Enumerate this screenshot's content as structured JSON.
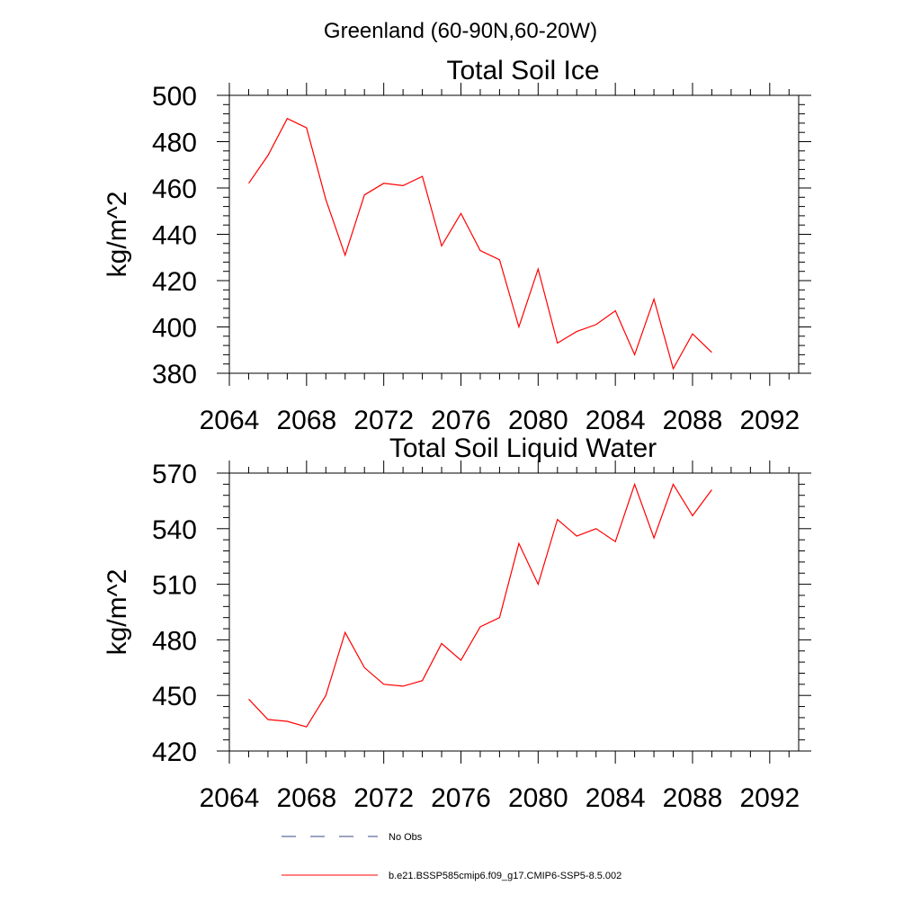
{
  "figure": {
    "title": "Greenland (60-90N,60-20W)"
  },
  "chart_data": [
    {
      "type": "line",
      "title": "Total Soil Ice",
      "xlabel": "",
      "ylabel": "kg/m^2",
      "xlim": [
        2064,
        2093.5
      ],
      "ylim": [
        380,
        500
      ],
      "xticks": [
        2064,
        2068,
        2072,
        2076,
        2080,
        2084,
        2088,
        2092
      ],
      "yticks": [
        380,
        400,
        420,
        440,
        460,
        480,
        500
      ],
      "grid": false,
      "series": [
        {
          "name": "b.e21.BSSP585cmip6.f09_g17.CMIP6-SSP5-8.5.002",
          "color": "#ff0000",
          "x": [
            2065,
            2066,
            2067,
            2068,
            2069,
            2070,
            2071,
            2072,
            2073,
            2074,
            2075,
            2076,
            2077,
            2078,
            2079,
            2080,
            2081,
            2082,
            2083,
            2084,
            2085,
            2086,
            2087,
            2088,
            2089
          ],
          "values": [
            462,
            474,
            490,
            486,
            455,
            431,
            457,
            462,
            461,
            465,
            435,
            449,
            433,
            429,
            400,
            425,
            393,
            398,
            401,
            407,
            388,
            412,
            382,
            397,
            389
          ]
        }
      ]
    },
    {
      "type": "line",
      "title": "Total Soil Liquid Water",
      "xlabel": "",
      "ylabel": "kg/m^2",
      "xlim": [
        2064,
        2093.5
      ],
      "ylim": [
        420,
        570
      ],
      "xticks": [
        2064,
        2068,
        2072,
        2076,
        2080,
        2084,
        2088,
        2092
      ],
      "yticks": [
        420,
        450,
        480,
        510,
        540,
        570
      ],
      "grid": false,
      "series": [
        {
          "name": "b.e21.BSSP585cmip6.f09_g17.CMIP6-SSP5-8.5.002",
          "color": "#ff0000",
          "x": [
            2065,
            2066,
            2067,
            2068,
            2069,
            2070,
            2071,
            2072,
            2073,
            2074,
            2075,
            2076,
            2077,
            2078,
            2079,
            2080,
            2081,
            2082,
            2083,
            2084,
            2085,
            2086,
            2087,
            2088,
            2089
          ],
          "values": [
            448,
            437,
            436,
            433,
            450,
            484,
            465,
            456,
            455,
            458,
            478,
            469,
            487,
            492,
            532,
            510,
            545,
            536,
            540,
            533,
            564,
            535,
            564,
            547,
            561
          ]
        }
      ]
    }
  ],
  "legend": {
    "position": "bottom",
    "entries": [
      {
        "label": "No Obs",
        "style": "dashed",
        "color": "#3a4a8a"
      },
      {
        "label": "b.e21.BSSP585cmip6.f09_g17.CMIP6-SSP5-8.5.002",
        "style": "solid",
        "color": "#ff0000"
      }
    ]
  }
}
